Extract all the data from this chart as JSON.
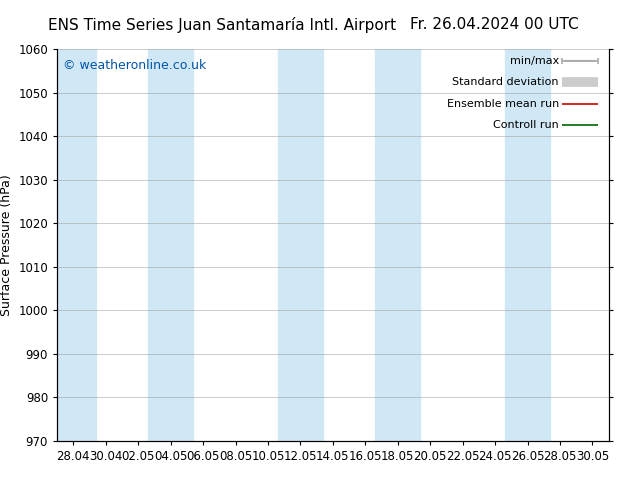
{
  "title_left": "ENS Time Series Juan Santamaría Intl. Airport",
  "title_right": "Fr. 26.04.2024 00 UTC",
  "ylabel": "Surface Pressure (hPa)",
  "ylim": [
    970,
    1060
  ],
  "yticks": [
    970,
    980,
    990,
    1000,
    1010,
    1020,
    1030,
    1040,
    1050,
    1060
  ],
  "x_tick_labels": [
    "28.04",
    "30.04",
    "02.05",
    "04.05",
    "06.05",
    "08.05",
    "10.05",
    "12.05",
    "14.05",
    "16.05",
    "18.05",
    "20.05",
    "22.05",
    "24.05",
    "26.05",
    "28.05",
    "30.05"
  ],
  "copyright_text": "© weatheronline.co.uk",
  "copyright_color": "#0055aa",
  "background_color": "#ffffff",
  "plot_bg_color": "#ffffff",
  "band_color": "#d0e8f5",
  "legend_items": [
    {
      "label": "min/max",
      "color": "#aaaaaa",
      "lw": 1.2
    },
    {
      "label": "Standard deviation",
      "color": "#cccccc",
      "lw": 7
    },
    {
      "label": "Ensemble mean run",
      "color": "#cc0000",
      "lw": 1.2
    },
    {
      "label": "Controll run",
      "color": "#006600",
      "lw": 1.2
    }
  ],
  "title_fontsize": 11,
  "label_fontsize": 9,
  "tick_fontsize": 8.5,
  "legend_fontsize": 8,
  "copyright_fontsize": 9
}
